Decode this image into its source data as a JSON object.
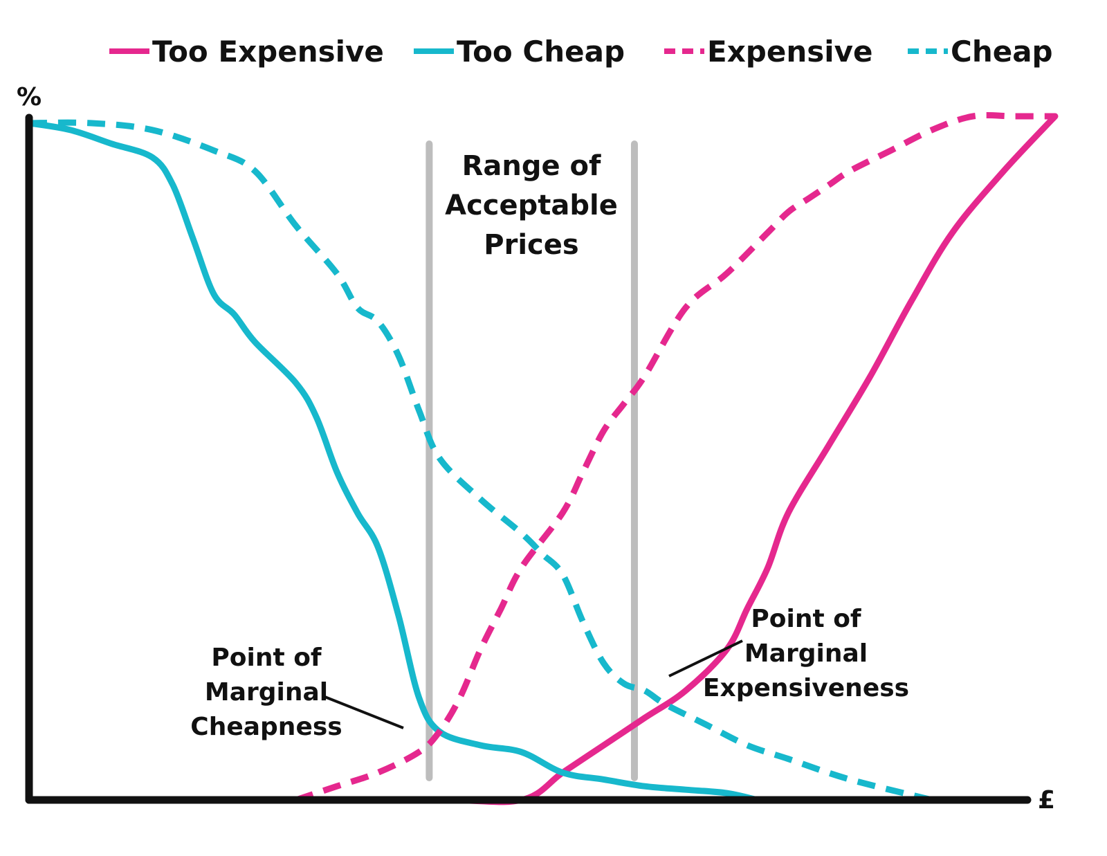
{
  "chart_data": {
    "type": "line",
    "title": "",
    "xlabel": "£",
    "ylabel": "%",
    "xlim": [
      0,
      100
    ],
    "ylim": [
      0,
      100
    ],
    "grid": false,
    "legend": "top",
    "colors": {
      "magenta": "#e5288e",
      "cyan": "#17b8cc",
      "axis": "#111111",
      "band": "#bdbdbd"
    },
    "series": [
      {
        "name": "Too Expensive",
        "color": "#e5288e",
        "style": "solid",
        "x": [
          0,
          20,
          40,
          48,
          52,
          56,
          60,
          64,
          68,
          70,
          72,
          74,
          78,
          82,
          86,
          90,
          95,
          100
        ],
        "y": [
          0,
          0,
          0,
          0,
          4,
          8,
          12,
          16,
          22,
          28,
          34,
          42,
          52,
          62,
          73,
          83,
          92,
          100
        ]
      },
      {
        "name": "Too Cheap",
        "color": "#17b8cc",
        "style": "solid",
        "x": [
          0,
          4,
          8,
          12,
          14,
          16,
          18,
          20,
          22,
          26,
          28,
          30,
          32,
          34,
          36,
          38,
          40,
          44,
          48,
          52,
          56,
          60,
          64,
          68,
          71
        ],
        "y": [
          99,
          98,
          96,
          94,
          90,
          82,
          74,
          71,
          67,
          61,
          56,
          48,
          42,
          37,
          27,
          15,
          10,
          8,
          7,
          4,
          3,
          2,
          1.5,
          1,
          0
        ]
      },
      {
        "name": "Expensive",
        "color": "#e5288e",
        "style": "dashed",
        "x": [
          26,
          30,
          34,
          38,
          40,
          42,
          44,
          46,
          48,
          52,
          54,
          56,
          58,
          60,
          64,
          68,
          72,
          74,
          76,
          78,
          80,
          84,
          88,
          92,
          96,
          100
        ],
        "y": [
          0,
          2,
          4,
          7,
          10,
          15,
          22,
          28,
          34,
          42,
          48,
          54,
          58,
          62,
          72,
          77,
          83,
          86,
          88,
          90,
          92,
          95,
          98,
          100,
          100,
          100
        ]
      },
      {
        "name": "Cheap",
        "color": "#17b8cc",
        "style": "dashed",
        "x": [
          0,
          6,
          12,
          18,
          22,
          26,
          30,
          32,
          34,
          36,
          38,
          40,
          44,
          48,
          50,
          52,
          54,
          56,
          58,
          60,
          62,
          66,
          70,
          74,
          80,
          88
        ],
        "y": [
          99,
          99,
          98,
          95,
          92,
          84,
          77,
          72,
          70,
          65,
          57,
          50,
          44,
          39,
          36,
          33,
          26,
          20,
          17,
          16,
          14,
          11,
          8,
          6,
          3,
          0
        ]
      }
    ],
    "bands": [
      {
        "x": 39
      },
      {
        "x": 59
      }
    ],
    "band_label": [
      "Range of",
      "Acceptable",
      "Prices"
    ],
    "annotations": [
      {
        "lines": [
          "Point of",
          "Marginal",
          "Cheapness"
        ],
        "x": 39,
        "y": 10.5
      },
      {
        "lines": [
          "Point of",
          "Marginal",
          "Expensiveness"
        ],
        "x": 60,
        "y": 17
      }
    ]
  }
}
